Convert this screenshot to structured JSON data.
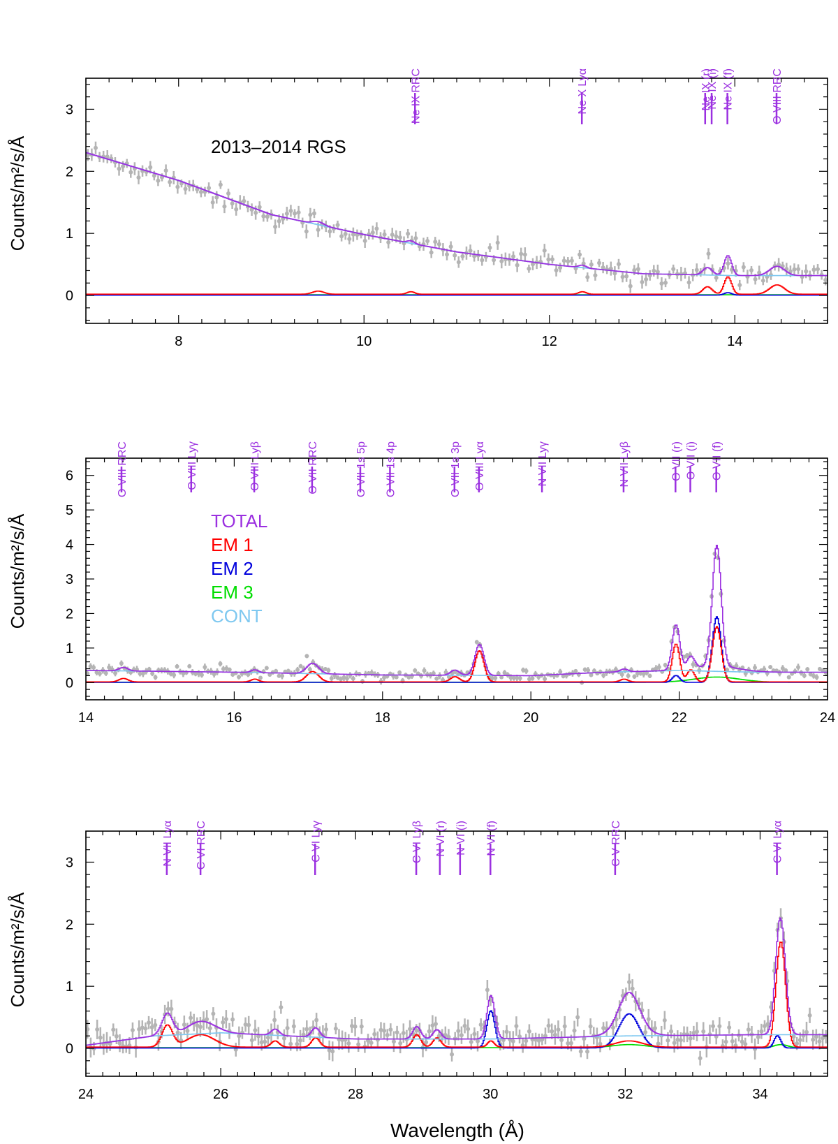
{
  "figure": {
    "x_axis_label": "Wavelength (Å)",
    "y_axis_label_html": "Counts/m²/s/Å",
    "legend": [
      {
        "name": "TOTAL",
        "color": "#9b30e0"
      },
      {
        "name": "EM 1",
        "color": "#ff0000"
      },
      {
        "name": "EM 2",
        "color": "#0000dd"
      },
      {
        "name": "EM 3",
        "color": "#00dd00"
      },
      {
        "name": "CONT",
        "color": "#7ec8f0"
      }
    ],
    "colors": {
      "data": "#b4b4b4",
      "line_marker": "#9b30e0",
      "total": "#9b30e0",
      "em1": "#ff0000",
      "em2": "#0000dd",
      "em3": "#00dd00",
      "cont": "#7ec8f0"
    }
  },
  "chart_data": [
    {
      "type": "line",
      "title": "",
      "annotation": "2013–2014 RGS",
      "xlabel": "",
      "ylabel": "Counts/m²/s/Å",
      "xlim": [
        7,
        15
      ],
      "ylim": [
        -0.45,
        3.5
      ],
      "xticks": [
        8,
        10,
        12,
        14
      ],
      "yticks": [
        0,
        1,
        2,
        3
      ],
      "lines": [
        {
          "label": "Ne IX RRC",
          "x": 10.55
        },
        {
          "label": "Ne X Lyα",
          "x": 12.35
        },
        {
          "label": "Ne IX (r)",
          "x": 13.68
        },
        {
          "label": "Ne IX (i)",
          "x": 13.75
        },
        {
          "label": "Ne IX (f)",
          "x": 13.92
        },
        {
          "label": "O VIII RRC",
          "x": 14.45
        }
      ],
      "continuum": [
        [
          7.0,
          2.3
        ],
        [
          8.0,
          1.85
        ],
        [
          9.0,
          1.3
        ],
        [
          10.0,
          0.98
        ],
        [
          11.0,
          0.7
        ],
        [
          12.0,
          0.5
        ],
        [
          13.0,
          0.35
        ],
        [
          14.0,
          0.32
        ],
        [
          15.0,
          0.32
        ]
      ],
      "components": {
        "em1": [
          {
            "x": 9.5,
            "a": 0.05,
            "w": 0.06
          },
          {
            "x": 10.5,
            "a": 0.04,
            "w": 0.04
          },
          {
            "x": 12.35,
            "a": 0.04,
            "w": 0.04
          },
          {
            "x": 13.7,
            "a": 0.12,
            "w": 0.05
          },
          {
            "x": 13.92,
            "a": 0.28,
            "w": 0.04
          },
          {
            "x": 14.45,
            "a": 0.15,
            "w": 0.08
          }
        ],
        "em2": [
          {
            "x": 13.92,
            "a": 0.04,
            "w": 0.04
          }
        ],
        "em3": []
      },
      "data_noise": 0.09,
      "data_points": 190
    },
    {
      "type": "line",
      "title": "",
      "annotation": "",
      "xlabel": "",
      "ylabel": "Counts/m²/s/Å",
      "xlim": [
        14,
        24
      ],
      "ylim": [
        -0.5,
        6.5
      ],
      "xticks": [
        14,
        16,
        18,
        20,
        22,
        24
      ],
      "yticks": [
        0,
        1,
        2,
        3,
        4,
        5,
        6
      ],
      "lines": [
        {
          "label": "O VIII RRC",
          "x": 14.48
        },
        {
          "label": "O VIII Lyγ",
          "x": 15.42
        },
        {
          "label": "O VIII Lyβ",
          "x": 16.27
        },
        {
          "label": "O VII RRC",
          "x": 17.05
        },
        {
          "label": "O VII 1s 5p",
          "x": 17.7
        },
        {
          "label": "O VII 1s 4p",
          "x": 18.1
        },
        {
          "label": "O VII 1s 3p",
          "x": 18.97
        },
        {
          "label": "O VIII Lyα",
          "x": 19.3
        },
        {
          "label": "N VII Lyγ",
          "x": 20.15
        },
        {
          "label": "N VII Lyβ",
          "x": 21.25
        },
        {
          "label": "O VII (r)",
          "x": 21.95
        },
        {
          "label": "O VII (i)",
          "x": 22.15
        },
        {
          "label": "O VII (f)",
          "x": 22.5
        }
      ],
      "continuum": [
        [
          14.0,
          0.35
        ],
        [
          16.0,
          0.3
        ],
        [
          18.0,
          0.22
        ],
        [
          20.0,
          0.2
        ],
        [
          21.0,
          0.3
        ],
        [
          22.0,
          0.35
        ],
        [
          23.0,
          0.3
        ],
        [
          24.0,
          0.3
        ]
      ],
      "components": {
        "em1": [
          {
            "x": 14.5,
            "a": 0.1,
            "w": 0.06
          },
          {
            "x": 16.27,
            "a": 0.08,
            "w": 0.05
          },
          {
            "x": 17.05,
            "a": 0.3,
            "w": 0.08
          },
          {
            "x": 18.97,
            "a": 0.15,
            "w": 0.06
          },
          {
            "x": 19.3,
            "a": 0.9,
            "w": 0.06
          },
          {
            "x": 21.25,
            "a": 0.08,
            "w": 0.05
          },
          {
            "x": 21.95,
            "a": 1.1,
            "w": 0.05
          },
          {
            "x": 22.15,
            "a": 0.35,
            "w": 0.05
          },
          {
            "x": 22.5,
            "a": 1.6,
            "w": 0.06
          }
        ],
        "em2": [
          {
            "x": 21.95,
            "a": 0.2,
            "w": 0.05
          },
          {
            "x": 22.5,
            "a": 1.9,
            "w": 0.06
          }
        ],
        "em3": [
          {
            "x": 22.5,
            "a": 0.15,
            "w": 0.3
          }
        ]
      },
      "data_noise": 0.08,
      "data_points": 240
    },
    {
      "type": "line",
      "title": "",
      "annotation": "",
      "xlabel": "Wavelength (Å)",
      "ylabel": "Counts/m²/s/Å",
      "xlim": [
        24,
        35
      ],
      "ylim": [
        -0.45,
        3.5
      ],
      "xticks": [
        24,
        26,
        28,
        30,
        32,
        34
      ],
      "yticks": [
        0,
        1,
        2,
        3
      ],
      "lines": [
        {
          "label": "N VII Lyα",
          "x": 25.2
        },
        {
          "label": "C VI RRC",
          "x": 25.7
        },
        {
          "label": "C VI Lyγ",
          "x": 27.4
        },
        {
          "label": "C VI Lyβ",
          "x": 28.9
        },
        {
          "label": "N VI (r)",
          "x": 29.25
        },
        {
          "label": "N VI (i)",
          "x": 29.55
        },
        {
          "label": "N VI (f)",
          "x": 30.0
        },
        {
          "label": "C V RRC",
          "x": 31.85
        },
        {
          "label": "C VI Lyα",
          "x": 34.25
        }
      ],
      "continuum": [
        [
          24.0,
          0.05
        ],
        [
          25.0,
          0.2
        ],
        [
          26.0,
          0.25
        ],
        [
          27.0,
          0.2
        ],
        [
          28.0,
          0.15
        ],
        [
          29.0,
          0.15
        ],
        [
          30.0,
          0.15
        ],
        [
          32.0,
          0.2
        ],
        [
          34.0,
          0.22
        ],
        [
          35.0,
          0.22
        ]
      ],
      "components": {
        "em1": [
          {
            "x": 25.2,
            "a": 0.35,
            "w": 0.08
          },
          {
            "x": 25.7,
            "a": 0.2,
            "w": 0.2
          },
          {
            "x": 26.8,
            "a": 0.1,
            "w": 0.06
          },
          {
            "x": 27.4,
            "a": 0.15,
            "w": 0.06
          },
          {
            "x": 28.9,
            "a": 0.2,
            "w": 0.06
          },
          {
            "x": 29.2,
            "a": 0.15,
            "w": 0.06
          },
          {
            "x": 30.0,
            "a": 0.1,
            "w": 0.05
          },
          {
            "x": 32.05,
            "a": 0.1,
            "w": 0.2
          },
          {
            "x": 34.3,
            "a": 1.7,
            "w": 0.07
          }
        ],
        "em2": [
          {
            "x": 30.0,
            "a": 0.6,
            "w": 0.06
          },
          {
            "x": 32.05,
            "a": 0.55,
            "w": 0.15
          },
          {
            "x": 34.25,
            "a": 0.2,
            "w": 0.05
          }
        ],
        "em3": [
          {
            "x": 32.05,
            "a": 0.05,
            "w": 0.25
          },
          {
            "x": 34.3,
            "a": 0.05,
            "w": 0.1
          }
        ]
      },
      "data_noise": 0.13,
      "data_points": 230
    }
  ]
}
